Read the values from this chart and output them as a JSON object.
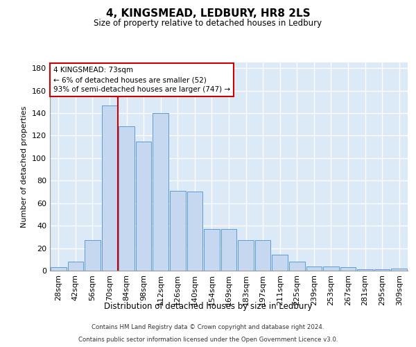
{
  "title": "4, KINGSMEAD, LEDBURY, HR8 2LS",
  "subtitle": "Size of property relative to detached houses in Ledbury",
  "xlabel": "Distribution of detached houses by size in Ledbury",
  "ylabel": "Number of detached properties",
  "categories": [
    "28sqm",
    "42sqm",
    "56sqm",
    "70sqm",
    "84sqm",
    "98sqm",
    "112sqm",
    "126sqm",
    "140sqm",
    "154sqm",
    "169sqm",
    "183sqm",
    "197sqm",
    "211sqm",
    "225sqm",
    "239sqm",
    "253sqm",
    "267sqm",
    "281sqm",
    "295sqm",
    "309sqm"
  ],
  "values": [
    3,
    8,
    27,
    147,
    128,
    115,
    140,
    71,
    70,
    37,
    37,
    27,
    27,
    14,
    8,
    4,
    4,
    3,
    1,
    1,
    2
  ],
  "bar_color": "#c5d8f0",
  "bar_edge_color": "#5b9bd5",
  "background_color": "#dce9f7",
  "grid_color": "#ffffff",
  "vline_color": "#cc0000",
  "vline_x": 3.5,
  "annotation_text": "4 KINGSMEAD: 73sqm\n← 6% of detached houses are smaller (52)\n93% of semi-detached houses are larger (747) →",
  "annotation_box_color": "#ffffff",
  "annotation_box_edge_color": "#cc0000",
  "ylim": [
    0,
    185
  ],
  "yticks": [
    0,
    20,
    40,
    60,
    80,
    100,
    120,
    140,
    160,
    180
  ],
  "footer_line1": "Contains HM Land Registry data © Crown copyright and database right 2024.",
  "footer_line2": "Contains public sector information licensed under the Open Government Licence v3.0."
}
